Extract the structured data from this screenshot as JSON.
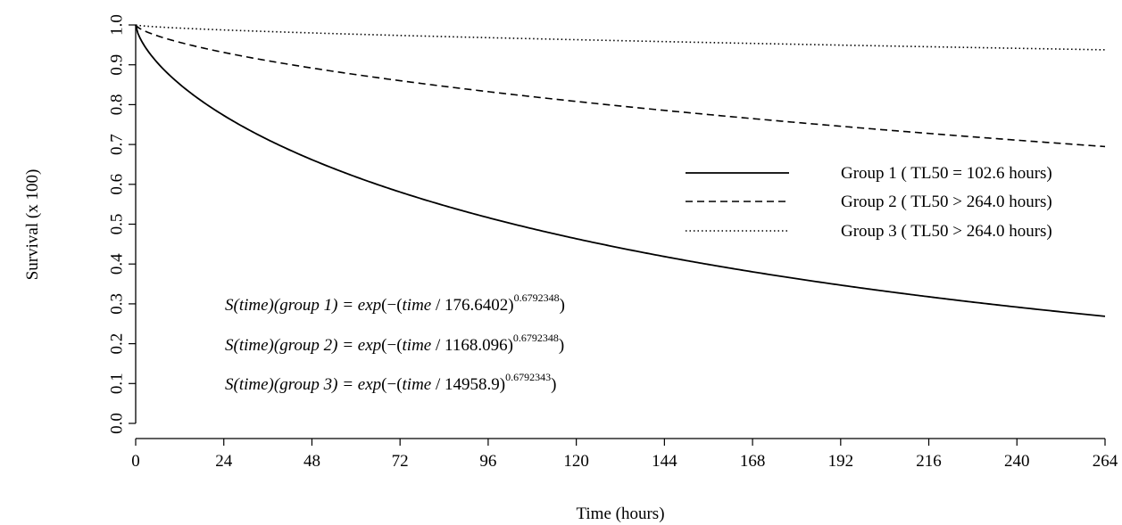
{
  "chart_data": {
    "type": "line",
    "xlabel": "Time (hours)",
    "ylabel": "Survival (x 100)",
    "xlim": [
      0,
      264
    ],
    "ylim": [
      0,
      1
    ],
    "x_ticks": [
      "0",
      "24",
      "48",
      "72",
      "96",
      "120",
      "144",
      "168",
      "192",
      "216",
      "240",
      "264"
    ],
    "y_ticks": [
      "0.0",
      "0.1",
      "0.2",
      "0.3",
      "0.4",
      "0.5",
      "0.6",
      "0.7",
      "0.8",
      "0.9",
      "1.0"
    ],
    "grid": false,
    "legend_position": "right",
    "series": [
      {
        "name": "Group 1 ( TL50 = 102.6 hours)",
        "line_style": "solid",
        "scale": 176.6402,
        "shape": 0.6792348,
        "x": [
          0,
          24,
          48,
          72,
          96,
          120,
          144,
          168,
          192,
          216,
          240,
          264
        ],
        "values": [
          1.0,
          0.765,
          0.656,
          0.578,
          0.516,
          0.466,
          0.423,
          0.386,
          0.354,
          0.326,
          0.301,
          0.279
        ]
      },
      {
        "name": "Group 2 ( TL50 > 264.0 hours)",
        "line_style": "dashed",
        "scale": 1168.096,
        "shape": 0.6792348,
        "x": [
          0,
          24,
          48,
          72,
          96,
          120,
          144,
          168,
          192,
          216,
          240,
          264
        ],
        "values": [
          1.0,
          0.93,
          0.889,
          0.856,
          0.826,
          0.8,
          0.775,
          0.752,
          0.731,
          0.711,
          0.692,
          0.674
        ]
      },
      {
        "name": "Group 3 ( TL50 > 264.0 hours)",
        "line_style": "dotted",
        "scale": 14958.9,
        "shape": 0.6792343,
        "x": [
          0,
          24,
          48,
          72,
          96,
          120,
          144,
          168,
          192,
          216,
          240,
          264
        ],
        "values": [
          1.0,
          0.985,
          0.976,
          0.968,
          0.961,
          0.954,
          0.948,
          0.942,
          0.937,
          0.931,
          0.926,
          0.921
        ]
      }
    ],
    "annotations": [
      {
        "lhs": "S(time)(group 1) = exp",
        "inner": "time",
        "divisor": "176.6402",
        "exponent": "0.6792348"
      },
      {
        "lhs": "S(time)(group 2) = exp",
        "inner": "time",
        "divisor": "1168.096",
        "exponent": "0.6792348"
      },
      {
        "lhs": "S(time)(group 3) = exp",
        "inner": "time",
        "divisor": "14958.9",
        "exponent": "0.6792343"
      }
    ]
  }
}
